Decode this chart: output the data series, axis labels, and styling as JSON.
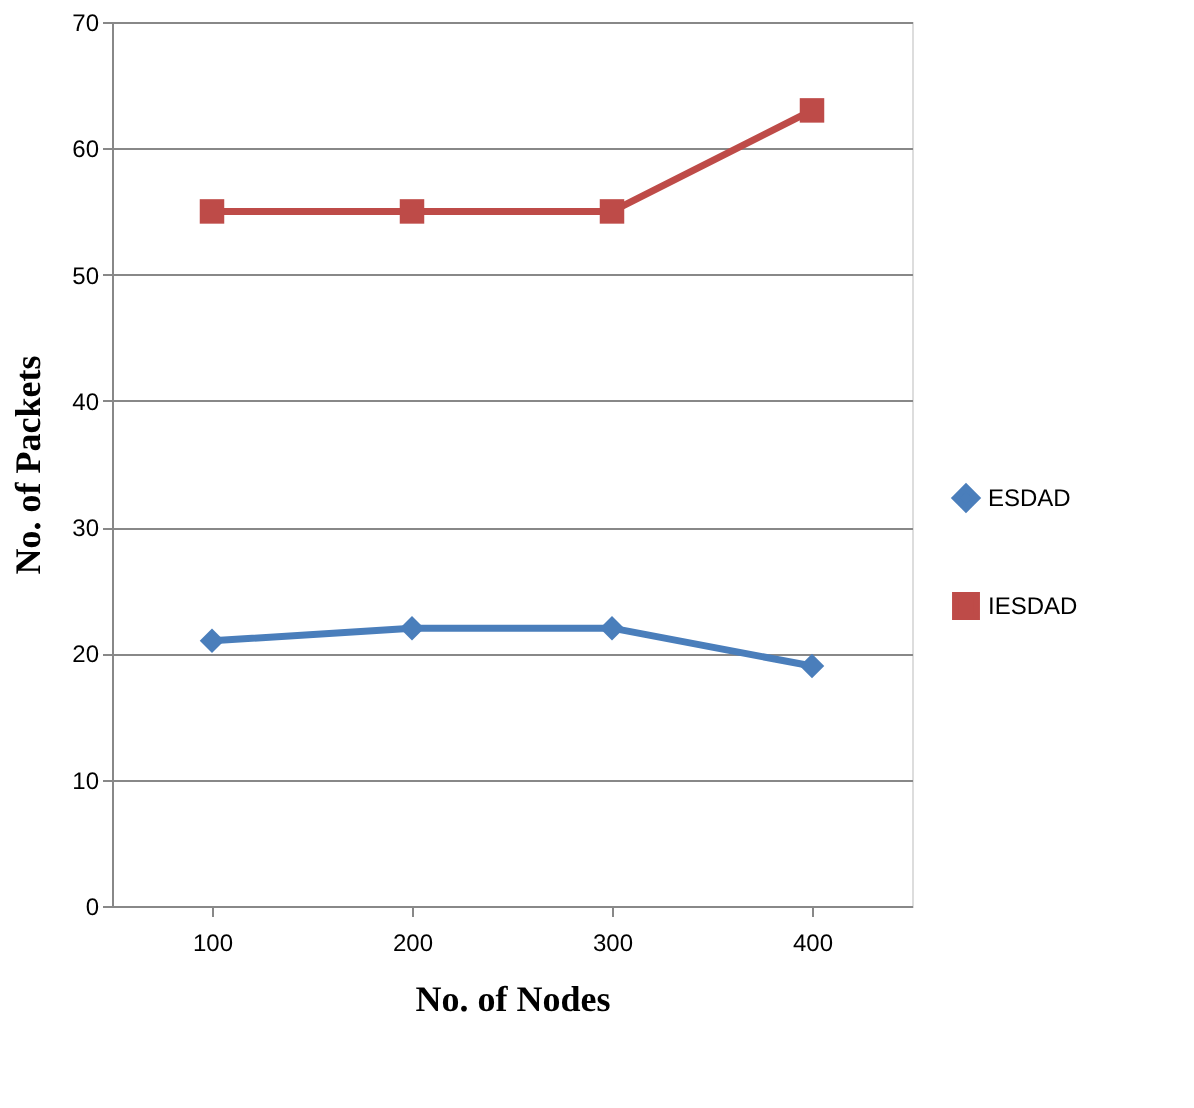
{
  "chart_data": {
    "type": "line",
    "xlabel": "No. of Nodes",
    "ylabel": "No. of Packets",
    "categories": [
      "100",
      "200",
      "300",
      "400"
    ],
    "series": [
      {
        "name": "ESDAD",
        "color": "#4a7ebb",
        "marker": "diamond",
        "values": [
          21,
          22,
          22,
          19
        ]
      },
      {
        "name": "IESDAD",
        "color": "#be4b48",
        "marker": "square",
        "values": [
          55,
          55,
          55,
          63
        ]
      }
    ],
    "ylim": [
      0,
      70
    ],
    "yticks": [
      0,
      10,
      20,
      30,
      40,
      50,
      60,
      70
    ],
    "grid": "y",
    "legend": "right",
    "line_style": "solid"
  }
}
